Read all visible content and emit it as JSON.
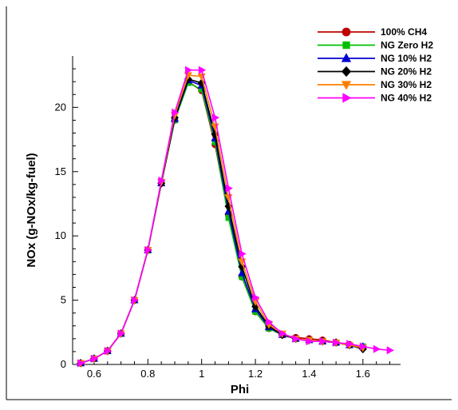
{
  "chart_data": {
    "type": "line",
    "title": "",
    "xlabel": "Phi",
    "ylabel": "NOx (g-NOx/kg-fuel)",
    "xlim": [
      0.52,
      1.74
    ],
    "ylim": [
      0,
      24
    ],
    "xticks": [
      0.6,
      0.8,
      1,
      1.2,
      1.4,
      1.6
    ],
    "yticks": [
      0,
      5,
      10,
      15,
      20
    ],
    "xtick_labels": [
      "0.6",
      "0.8",
      "1",
      "1.2",
      "1.4",
      "1.6"
    ],
    "ytick_labels": [
      "0",
      "5",
      "10",
      "15",
      "20"
    ],
    "grid": false,
    "legend_position": "top-right",
    "series": [
      {
        "name": "100% CH4",
        "color": "#c00000",
        "marker": "circle",
        "x": [
          0.55,
          0.6,
          0.65,
          0.7,
          0.75,
          0.8,
          0.85,
          0.9,
          0.95,
          1.0,
          1.05,
          1.1,
          1.15,
          1.2,
          1.25,
          1.3,
          1.35,
          1.4,
          1.45,
          1.5,
          1.55
        ],
        "y": [
          0.1,
          0.45,
          1.05,
          2.4,
          5.0,
          8.9,
          14.1,
          19.0,
          22.0,
          21.3,
          17.1,
          11.6,
          6.8,
          4.1,
          2.8,
          2.3,
          2.1,
          2.0,
          1.9,
          1.7,
          1.55
        ]
      },
      {
        "name": "NG Zero H2",
        "color": "#00c000",
        "marker": "square",
        "x": [
          0.55,
          0.6,
          0.65,
          0.7,
          0.75,
          0.8,
          0.85,
          0.9,
          0.95,
          1.0,
          1.05,
          1.1,
          1.15,
          1.2,
          1.25,
          1.3,
          1.35,
          1.4,
          1.45,
          1.5,
          1.55,
          1.6
        ],
        "y": [
          0.1,
          0.45,
          1.05,
          2.4,
          5.0,
          8.9,
          14.1,
          19.0,
          21.9,
          21.4,
          17.3,
          11.4,
          6.8,
          4.1,
          2.8,
          2.3,
          2.0,
          1.9,
          1.8,
          1.7,
          1.5,
          1.4
        ]
      },
      {
        "name": "NG 10% H2",
        "color": "#0000d0",
        "marker": "triangle-up",
        "x": [
          0.55,
          0.6,
          0.65,
          0.7,
          0.75,
          0.8,
          0.85,
          0.9,
          0.95,
          1.0,
          1.05,
          1.1,
          1.15,
          1.2,
          1.25,
          1.3,
          1.35,
          1.4,
          1.45,
          1.5,
          1.55,
          1.6
        ],
        "y": [
          0.1,
          0.45,
          1.05,
          2.4,
          5.0,
          8.9,
          14.1,
          19.1,
          22.1,
          21.7,
          17.6,
          11.9,
          7.1,
          4.3,
          2.9,
          2.3,
          2.0,
          1.9,
          1.8,
          1.7,
          1.5,
          1.4
        ]
      },
      {
        "name": "NG 20% H2",
        "color": "#000000",
        "marker": "diamond",
        "x": [
          0.55,
          0.6,
          0.65,
          0.7,
          0.75,
          0.8,
          0.85,
          0.9,
          0.95,
          1.0,
          1.05,
          1.1,
          1.15,
          1.2,
          1.25,
          1.3,
          1.35,
          1.4,
          1.45,
          1.5,
          1.55,
          1.6
        ],
        "y": [
          0.1,
          0.45,
          1.05,
          2.4,
          5.0,
          8.9,
          14.1,
          19.2,
          22.2,
          21.9,
          17.9,
          12.3,
          7.6,
          4.5,
          3.0,
          2.3,
          2.0,
          1.9,
          1.8,
          1.7,
          1.5,
          1.2
        ]
      },
      {
        "name": "NG 30% H2",
        "color": "#ff8000",
        "marker": "triangle-down",
        "x": [
          0.55,
          0.6,
          0.65,
          0.7,
          0.75,
          0.8,
          0.85,
          0.9,
          0.95,
          1.0,
          1.05,
          1.1,
          1.15,
          1.2,
          1.25,
          1.3,
          1.35,
          1.4,
          1.45,
          1.5,
          1.55,
          1.6
        ],
        "y": [
          0.1,
          0.45,
          1.05,
          2.4,
          5.0,
          8.9,
          14.2,
          19.4,
          22.5,
          22.4,
          18.5,
          13.0,
          8.0,
          4.9,
          3.1,
          2.4,
          2.0,
          1.9,
          1.8,
          1.7,
          1.5,
          1.3
        ]
      },
      {
        "name": "NG 40% H2",
        "color": "#ff00ff",
        "marker": "triangle-right",
        "x": [
          0.55,
          0.6,
          0.65,
          0.7,
          0.75,
          0.8,
          0.85,
          0.9,
          0.95,
          1.0,
          1.05,
          1.1,
          1.15,
          1.2,
          1.25,
          1.3,
          1.35,
          1.4,
          1.45,
          1.5,
          1.55,
          1.6,
          1.65,
          1.7
        ],
        "y": [
          0.1,
          0.45,
          1.05,
          2.4,
          5.0,
          8.9,
          14.3,
          19.6,
          22.9,
          22.9,
          19.2,
          13.7,
          8.6,
          5.2,
          3.3,
          2.4,
          2.0,
          1.8,
          1.8,
          1.7,
          1.6,
          1.4,
          1.2,
          1.1
        ]
      }
    ]
  }
}
